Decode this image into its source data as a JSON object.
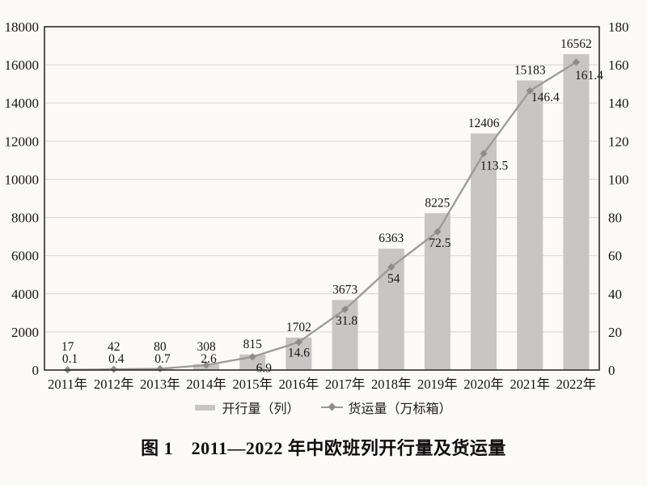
{
  "caption": "图 1　2011—2022 年中欧班列开行量及货运量",
  "colors": {
    "background": "#fbfaf6",
    "bar": "#c7c6c4",
    "line": "#9b9a98",
    "marker": "#8d8c8a",
    "grid": "#dcdbd8",
    "axis": "#2e2d2b",
    "text": "#161616"
  },
  "chart_data": {
    "type": "bar+line",
    "title": "图 1　2011—2022 年中欧班列开行量及货运量",
    "categories": [
      "2011年",
      "2012年",
      "2013年",
      "2014年",
      "2015年",
      "2016年",
      "2017年",
      "2018年",
      "2019年",
      "2020年",
      "2021年",
      "2022年"
    ],
    "series": [
      {
        "name": "开行量（列）",
        "type": "bar",
        "axis": "left",
        "color": "#c7c6c4",
        "values": [
          17,
          42,
          80,
          308,
          815,
          1702,
          3673,
          6363,
          8225,
          12406,
          15183,
          16562
        ],
        "labels": [
          "17",
          "42",
          "80",
          "308",
          "815",
          "1702",
          "3673",
          "6363",
          "8225",
          "12406",
          "15183",
          "16562"
        ]
      },
      {
        "name": "货运量（万标箱）",
        "type": "line",
        "axis": "right",
        "color": "#9b9a98",
        "marker": "diamond",
        "values": [
          0.1,
          0.4,
          0.7,
          2.6,
          6.9,
          14.6,
          31.8,
          54,
          72.5,
          113.5,
          146.4,
          161.4
        ],
        "labels": [
          "0.1",
          "0.4",
          "0.7",
          "2.6",
          "6.9",
          "14.6",
          "31.8",
          "54",
          "72.5",
          "113.5",
          "146.4",
          "161.4"
        ]
      }
    ],
    "left_axis": {
      "min": 0,
      "max": 18000,
      "step": 2000,
      "ticks": [
        "0",
        "2000",
        "4000",
        "6000",
        "8000",
        "10000",
        "12000",
        "14000",
        "16000",
        "18000"
      ]
    },
    "right_axis": {
      "min": 0,
      "max": 180,
      "step": 20,
      "ticks": [
        "0",
        "20",
        "40",
        "60",
        "80",
        "100",
        "120",
        "140",
        "160",
        "180"
      ]
    },
    "grid": true,
    "legend_position": "bottom"
  }
}
